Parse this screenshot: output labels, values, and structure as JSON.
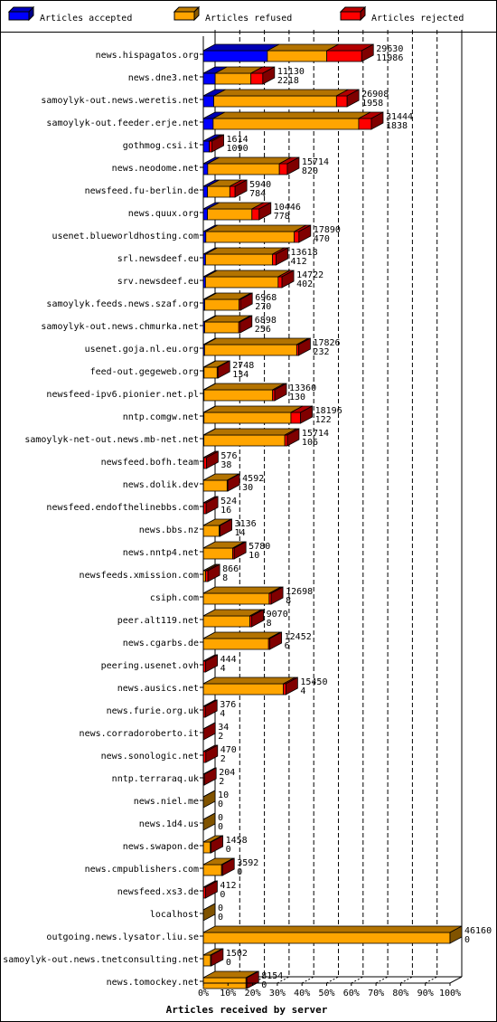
{
  "chart_data": {
    "type": "bar",
    "orientation": "horizontal",
    "stacking": "stacked",
    "style": "3d",
    "xlabel": "Articles received by server",
    "x_ticks": [
      "0%",
      "10%",
      "20%",
      "30%",
      "40%",
      "50%",
      "60%",
      "70%",
      "80%",
      "90%",
      "100%"
    ],
    "xlim": [
      0,
      100
    ],
    "legend_position": "top",
    "series": [
      {
        "name": "Articles accepted",
        "color": "#0000ff"
      },
      {
        "name": "Articles refused",
        "color": "#ffa500"
      },
      {
        "name": "Articles rejected",
        "color": "#ff0000"
      }
    ],
    "categories": [
      "news.hispagatos.org",
      "news.dne3.net",
      "samoylyk-out.news.weretis.net",
      "samoylyk-out.feeder.erje.net",
      "gothmog.csi.it",
      "news.neodome.net",
      "newsfeed.fu-berlin.de",
      "news.quux.org",
      "usenet.blueworldhosting.com",
      "srl.newsdeef.eu",
      "srv.newsdeef.eu",
      "samoylyk.feeds.news.szaf.org",
      "samoylyk-out.news.chmurka.net",
      "usenet.goja.nl.eu.org",
      "feed-out.gegeweb.org",
      "newsfeed-ipv6.pionier.net.pl",
      "nntp.comgw.net",
      "samoylyk-net-out.news.mb-net.net",
      "newsfeed.bofh.team",
      "news.dolik.dev",
      "newsfeed.endofthelinebbs.com",
      "news.bbs.nz",
      "news.nntp4.net",
      "newsfeeds.xmission.com",
      "csiph.com",
      "peer.alt119.net",
      "news.cgarbs.de",
      "peering.usenet.ovh",
      "news.ausics.net",
      "news.furie.org.uk",
      "news.corradoroberto.it",
      "news.sonologic.net",
      "nntp.terraraq.uk",
      "news.niel.me",
      "news.1d4.us",
      "news.swapon.de",
      "news.cmpublishers.com",
      "newsfeed.xs3.de",
      "localhost",
      "outgoing.news.lysator.liu.se",
      "samoylyk-out.news.tnetconsulting.net",
      "news.tomockey.net"
    ],
    "totals": [
      "29630",
      "11130",
      "26908",
      "31444",
      "1614",
      "15714",
      "5940",
      "10446",
      "17890",
      "13618",
      "14722",
      "6968",
      "6898",
      "17826",
      "2748",
      "13360",
      "18196",
      "15714",
      "576",
      "4592",
      "524",
      "3136",
      "5780",
      "866",
      "12698",
      "9070",
      "12452",
      "444",
      "15450",
      "376",
      "34",
      "470",
      "204",
      "10",
      "0",
      "1458",
      "3592",
      "412",
      "0",
      "46160",
      "1502",
      "8154"
    ],
    "accepted": [
      "11986",
      "2218",
      "1958",
      "1838",
      "1090",
      "820",
      "784",
      "778",
      "470",
      "412",
      "402",
      "270",
      "256",
      "232",
      "134",
      "130",
      "122",
      "106",
      "38",
      "30",
      "16",
      "14",
      "10",
      "8",
      "8",
      "8",
      "6",
      "4",
      "4",
      "4",
      "2",
      "2",
      "2",
      "0",
      "0",
      "0",
      "0",
      "0",
      "0",
      "0",
      "0",
      "0"
    ],
    "refused_fraction": [
      0.63,
      0.75,
      0.92,
      0.92,
      0.15,
      0.9,
      0.81,
      0.86,
      0.95,
      0.95,
      0.95,
      0.96,
      0.96,
      0.98,
      0.94,
      0.97,
      0.9,
      0.97,
      0.1,
      0.97,
      0.1,
      0.95,
      0.95,
      0.5,
      0.97,
      0.96,
      0.98,
      0.05,
      0.97,
      0.05,
      0.0,
      0.05,
      0.05,
      1.0,
      0.0,
      0.9,
      0.95,
      0.05,
      0.0,
      1.0,
      0.9,
      0.98
    ]
  }
}
